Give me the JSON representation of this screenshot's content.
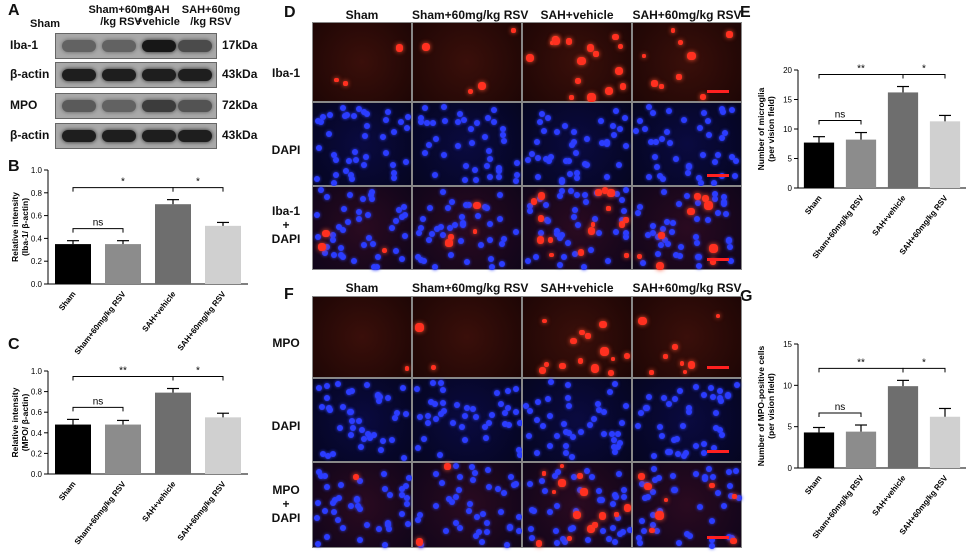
{
  "panel_letters": {
    "A": "A",
    "B": "B",
    "C": "C",
    "D": "D",
    "E": "E",
    "F": "F",
    "G": "G"
  },
  "blot": {
    "col_headers": [
      {
        "line1": "Sham",
        "line2": ""
      },
      {
        "line1": "Sham+60mg",
        "line2": "/kg RSV"
      },
      {
        "line1": "SAH",
        "line2": "+vehicle"
      },
      {
        "line1": "SAH+60mg",
        "line2": "/kg RSV"
      }
    ],
    "rows": [
      {
        "label": "Iba-1",
        "kda": "17kDa",
        "intensity": [
          0.35,
          0.35,
          0.85,
          0.5
        ]
      },
      {
        "label": "β-actin",
        "kda": "43kDa",
        "intensity": [
          0.8,
          0.8,
          0.8,
          0.8
        ]
      },
      {
        "label": "MPO",
        "kda": "72kDa",
        "intensity": [
          0.4,
          0.35,
          0.6,
          0.45
        ]
      },
      {
        "label": "β-actin",
        "kda": "43kDa",
        "intensity": [
          0.8,
          0.8,
          0.8,
          0.8
        ]
      }
    ]
  },
  "micro_D": {
    "col_headers": [
      "Sham",
      "Sham+60mg/kg RSV",
      "SAH+vehicle",
      "SAH+60mg/kg RSV"
    ],
    "row_labels": [
      {
        "l1": "Iba-1",
        "l2": "",
        "l3": ""
      },
      {
        "l1": "DAPI",
        "l2": "",
        "l3": ""
      },
      {
        "l1": "Iba-1",
        "l2": "+",
        "l3": "DAPI"
      }
    ]
  },
  "micro_F": {
    "col_headers": [
      "Sham",
      "Sham+60mg/kg RSV",
      "SAH+vehicle",
      "SAH+60mg/kg RSV"
    ],
    "row_labels": [
      {
        "l1": "MPO",
        "l2": "",
        "l3": ""
      },
      {
        "l1": "DAPI",
        "l2": "",
        "l3": ""
      },
      {
        "l1": "MPO",
        "l2": "+",
        "l3": "DAPI"
      }
    ]
  },
  "chart_data": [
    {
      "panel": "B",
      "type": "bar",
      "categories": [
        "Sham",
        "Sham+60mg/kg RSV",
        "SAH+vehicle",
        "SAH+60mg/kg RSV"
      ],
      "values": [
        0.35,
        0.35,
        0.7,
        0.51
      ],
      "errors": [
        0.03,
        0.03,
        0.04,
        0.03
      ],
      "colors": [
        "#000000",
        "#8c8c8c",
        "#6e6e6e",
        "#d0d0d0"
      ],
      "ylabel_line1": "Relative intensity",
      "ylabel_line2": "(Iba-1/ β-actin)",
      "ylim": [
        0,
        1.0
      ],
      "yticks": [
        "0.0",
        "0.2",
        "0.4",
        "0.6",
        "0.8",
        "1.0"
      ],
      "sig": [
        {
          "from": 0,
          "to": 1,
          "label": "ns"
        },
        {
          "from": 0,
          "to": 2,
          "label": "*"
        },
        {
          "from": 2,
          "to": 3,
          "label": "*"
        }
      ]
    },
    {
      "panel": "C",
      "type": "bar",
      "categories": [
        "Sham",
        "Sham+60mg/kg RSV",
        "SAH+vehicle",
        "SAH+60mg/kg RSV"
      ],
      "values": [
        0.48,
        0.48,
        0.79,
        0.55
      ],
      "errors": [
        0.05,
        0.04,
        0.04,
        0.04
      ],
      "colors": [
        "#000000",
        "#8c8c8c",
        "#6e6e6e",
        "#d0d0d0"
      ],
      "ylabel_line1": "Relative intensity",
      "ylabel_line2": "(MPO/ β-actin)",
      "ylim": [
        0,
        1.0
      ],
      "yticks": [
        "0.0",
        "0.2",
        "0.4",
        "0.6",
        "0.8",
        "1.0"
      ],
      "sig": [
        {
          "from": 0,
          "to": 1,
          "label": "ns"
        },
        {
          "from": 0,
          "to": 2,
          "label": "**"
        },
        {
          "from": 2,
          "to": 3,
          "label": "*"
        }
      ]
    },
    {
      "panel": "E",
      "type": "bar",
      "categories": [
        "Sham",
        "Sham+60mg/kg RSV",
        "SAH+vehicle",
        "SAH+60mg/kg RSV"
      ],
      "values": [
        7.7,
        8.2,
        16.2,
        11.3
      ],
      "errors": [
        1.0,
        1.2,
        1.0,
        1.0
      ],
      "colors": [
        "#000000",
        "#8c8c8c",
        "#6e6e6e",
        "#d0d0d0"
      ],
      "ylabel_line1": "Number of microglia",
      "ylabel_line2": "(per vision field)",
      "ylim": [
        0,
        20
      ],
      "yticks": [
        "0",
        "5",
        "10",
        "15",
        "20"
      ],
      "sig": [
        {
          "from": 0,
          "to": 1,
          "label": "ns"
        },
        {
          "from": 0,
          "to": 2,
          "label": "**"
        },
        {
          "from": 2,
          "to": 3,
          "label": "*"
        }
      ]
    },
    {
      "panel": "G",
      "type": "bar",
      "categories": [
        "Sham",
        "Sham+60mg/kg RSV",
        "SAH+vehicle",
        "SAH+60mg/kg RSV"
      ],
      "values": [
        4.3,
        4.4,
        9.9,
        6.2
      ],
      "errors": [
        0.6,
        0.8,
        0.7,
        1.0
      ],
      "colors": [
        "#000000",
        "#8c8c8c",
        "#6e6e6e",
        "#d0d0d0"
      ],
      "ylabel_line1": "Number of MPO-positive cells",
      "ylabel_line2": "(per vision field)",
      "ylim": [
        0,
        15
      ],
      "yticks": [
        "0",
        "5",
        "10",
        "15"
      ],
      "sig": [
        {
          "from": 0,
          "to": 1,
          "label": "ns"
        },
        {
          "from": 0,
          "to": 2,
          "label": "**"
        },
        {
          "from": 2,
          "to": 3,
          "label": "*"
        }
      ]
    }
  ]
}
